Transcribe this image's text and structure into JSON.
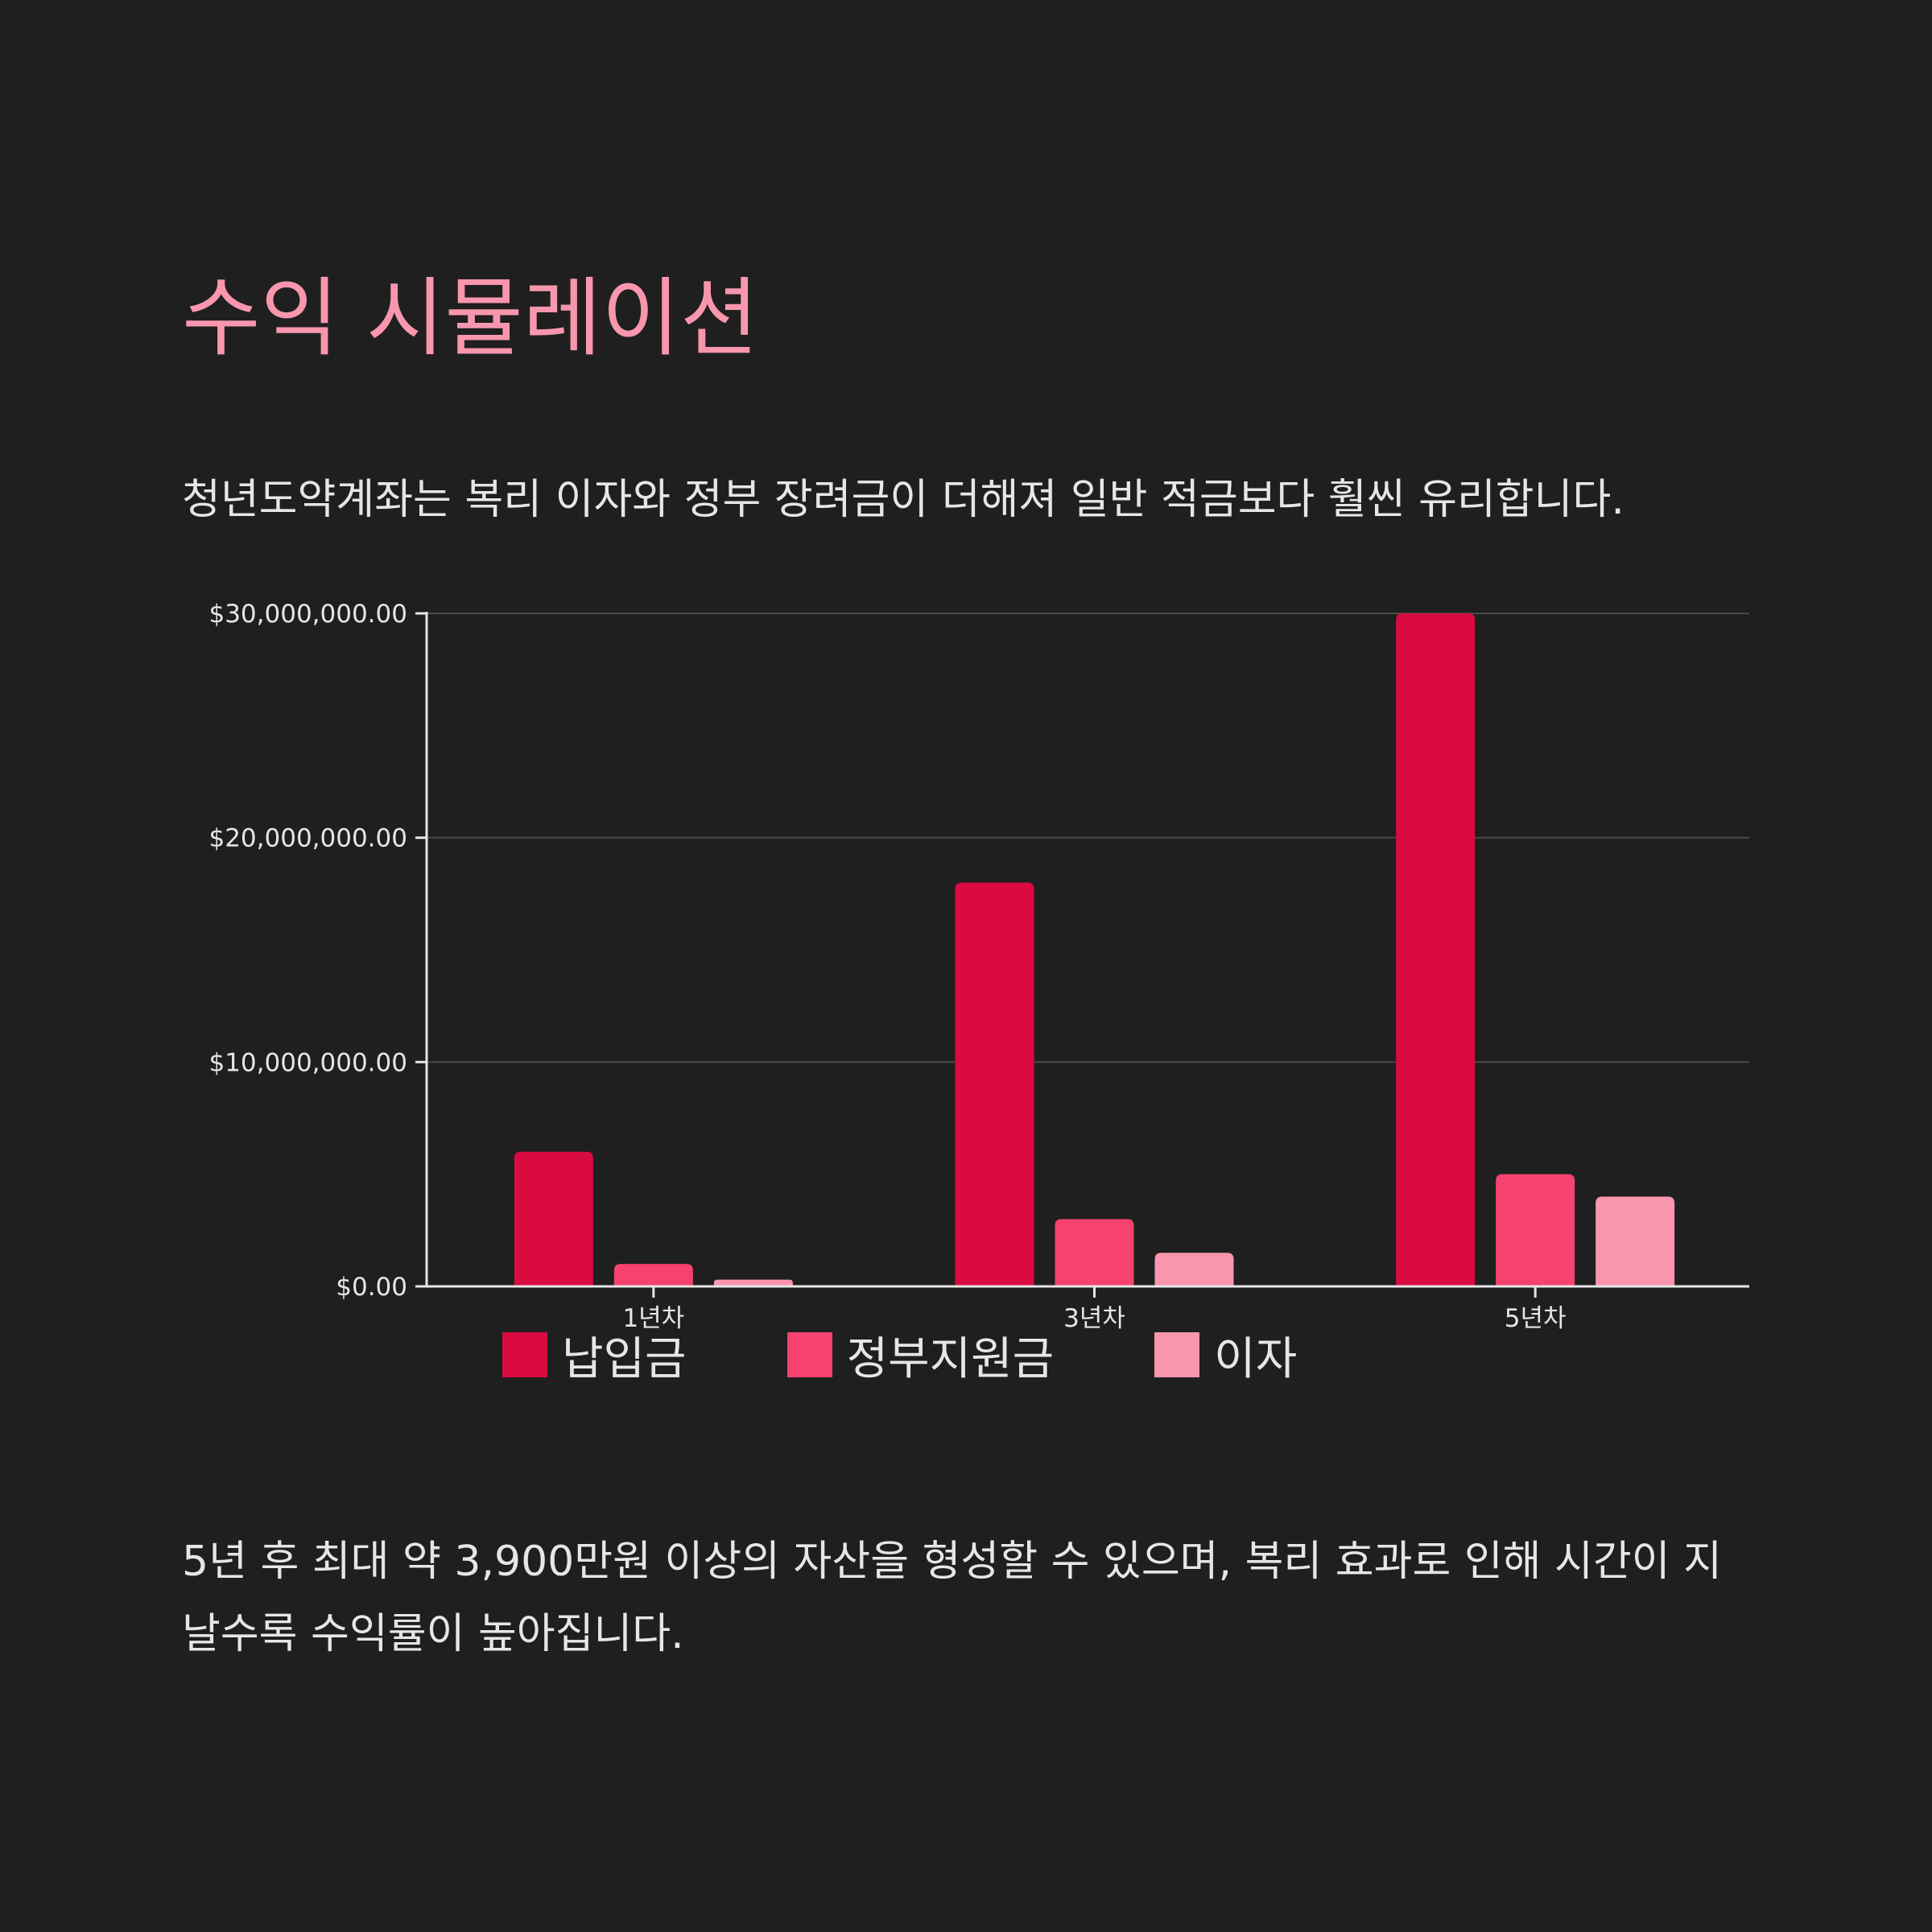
{
  "header": {
    "title": "수익 시뮬레이션",
    "subtitle": "청년도약계좌는 복리 이자와 정부 장려금이 더해져 일반 적금보다 훨씬 유리합니다."
  },
  "footer": {
    "text": "5년 후 최대 약 3,900만원 이상의 자산을 형성할 수 있으며, 복리 효과로 인해 시간이 지날수록 수익률이 높아집니다."
  },
  "colors": {
    "background": "#1f1f1f",
    "title": "#f896ae",
    "text": "#e6e6e6",
    "grid": "#4a4a4a",
    "axis": "#e6e6e6"
  },
  "chart_data": {
    "type": "bar",
    "categories": [
      "1년차",
      "3년차",
      "5년차"
    ],
    "series": [
      {
        "name": "납입금",
        "color": "#d90b40",
        "values": [
          6000000,
          18000000,
          30000000
        ]
      },
      {
        "name": "정부지원금",
        "color": "#f5426e",
        "values": [
          1000000,
          3000000,
          5000000
        ]
      },
      {
        "name": "이자",
        "color": "#f996ad",
        "values": [
          300000,
          1500000,
          4000000
        ]
      }
    ],
    "yticks": [
      0,
      10000000,
      20000000,
      30000000
    ],
    "ytick_labels": [
      "$0.00",
      "$10,000,000.00",
      "$20,000,000.00",
      "$30,000,000.00"
    ],
    "ylim": [
      0,
      30000000
    ],
    "grid": true,
    "legend_position": "bottom"
  }
}
